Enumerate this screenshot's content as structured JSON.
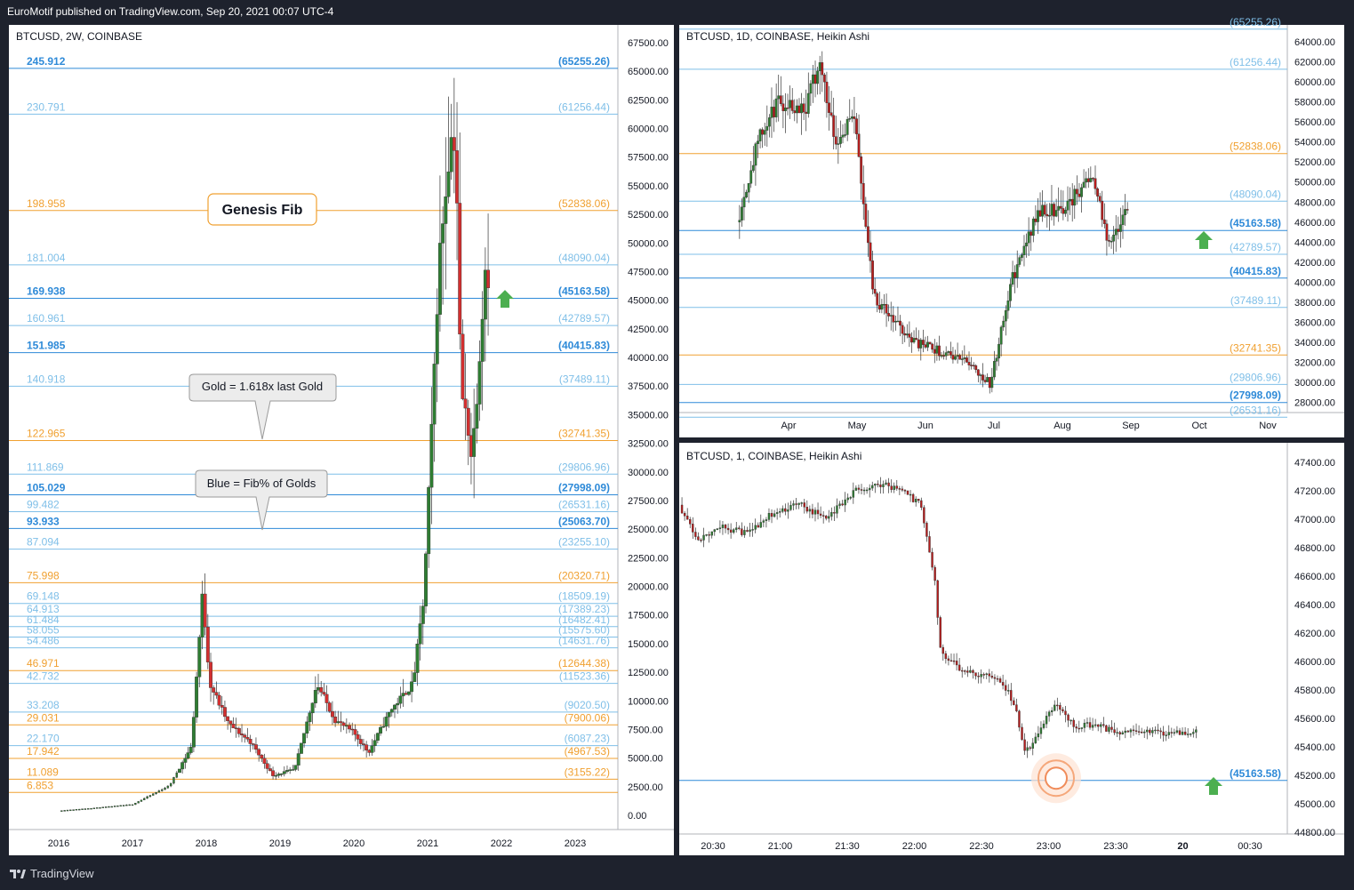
{
  "header": {
    "publisher_text": "EuroMotif published on TradingView.com, Sep 20, 2021 00:07 UTC-4"
  },
  "footer": {
    "brand": "TradingView"
  },
  "colors": {
    "bull": "#26a69a",
    "bear": "#d32f2f",
    "bull_ha": "#2e7d32",
    "bear_ha": "#b71c1c",
    "gold": "#f0a030",
    "blue": "#2e8ad8",
    "lightblue": "#7fbfe8",
    "arrow": "#4caf50"
  },
  "left_chart": {
    "symbol": "BTCUSD, 2W, COINBASE",
    "price_axis": [
      "67500.00",
      "65000.00",
      "62500.00",
      "60000.00",
      "57500.00",
      "55000.00",
      "52500.00",
      "50000.00",
      "47500.00",
      "45000.00",
      "42500.00",
      "40000.00",
      "37500.00",
      "35000.00",
      "32500.00",
      "30000.00",
      "27500.00",
      "25000.00",
      "22500.00",
      "20000.00",
      "17500.00",
      "15000.00",
      "12500.00",
      "10000.00",
      "7500.00",
      "5000.00",
      "2500.00",
      "0.00"
    ],
    "time_axis": [
      "2016",
      "2017",
      "2018",
      "2019",
      "2020",
      "2021",
      "2022",
      "2023"
    ],
    "fib_levels": [
      {
        "left": "245.912",
        "right": "(65255.26)",
        "price": 65255,
        "kind": "blue"
      },
      {
        "left": "230.791",
        "right": "(61256.44)",
        "price": 61256,
        "kind": "lightblue"
      },
      {
        "left": "198.958",
        "right": "(52838.06)",
        "price": 52838,
        "kind": "gold"
      },
      {
        "left": "181.004",
        "right": "(48090.04)",
        "price": 48090,
        "kind": "lightblue"
      },
      {
        "left": "169.938",
        "right": "(45163.58)",
        "price": 45164,
        "kind": "blue"
      },
      {
        "left": "160.961",
        "right": "(42789.57)",
        "price": 42790,
        "kind": "lightblue"
      },
      {
        "left": "151.985",
        "right": "(40415.83)",
        "price": 40416,
        "kind": "blue"
      },
      {
        "left": "140.918",
        "right": "(37489.11)",
        "price": 37489,
        "kind": "lightblue"
      },
      {
        "left": "122.965",
        "right": "(32741.35)",
        "price": 32741,
        "kind": "gold"
      },
      {
        "left": "111.869",
        "right": "(29806.96)",
        "price": 29807,
        "kind": "lightblue"
      },
      {
        "left": "105.029",
        "right": "(27998.09)",
        "price": 27998,
        "kind": "blue"
      },
      {
        "left": "99.482",
        "right": "(26531.16)",
        "price": 26531,
        "kind": "lightblue"
      },
      {
        "left": "93.933",
        "right": "(25063.70)",
        "price": 25064,
        "kind": "blue"
      },
      {
        "left": "87.094",
        "right": "(23255.10)",
        "price": 23255,
        "kind": "lightblue"
      },
      {
        "left": "75.998",
        "right": "(20320.71)",
        "price": 20321,
        "kind": "gold"
      },
      {
        "left": "69.148",
        "right": "(18509.19)",
        "price": 18509,
        "kind": "lightblue"
      },
      {
        "left": "64.913",
        "right": "(17389.23)",
        "price": 17389,
        "kind": "lightblue"
      },
      {
        "left": "61.484",
        "right": "(16482.41)",
        "price": 16482,
        "kind": "lightblue"
      },
      {
        "left": "58.055",
        "right": "(15575.60)",
        "price": 15576,
        "kind": "lightblue"
      },
      {
        "left": "54.486",
        "right": "(14631.76)",
        "price": 14632,
        "kind": "lightblue"
      },
      {
        "left": "46.971",
        "right": "(12644.38)",
        "price": 12644,
        "kind": "gold"
      },
      {
        "left": "42.732",
        "right": "(11523.36)",
        "price": 11523,
        "kind": "lightblue"
      },
      {
        "left": "33.208",
        "right": "(9020.50)",
        "price": 9020,
        "kind": "lightblue"
      },
      {
        "left": "29.031",
        "right": "(7900.06)",
        "price": 7900,
        "kind": "gold"
      },
      {
        "left": "22.170",
        "right": "(6087.23)",
        "price": 6087,
        "kind": "lightblue"
      },
      {
        "left": "17.942",
        "right": "(4967.53)",
        "price": 4968,
        "kind": "gold"
      },
      {
        "left": "11.089",
        "right": "(3155.22)",
        "price": 3155,
        "kind": "gold"
      },
      {
        "left": "6.853",
        "right": "",
        "price": 2000,
        "kind": "gold"
      }
    ],
    "annotations": {
      "title_box": "Genesis Fib",
      "callout1": "Gold = 1.618x last Gold",
      "callout2": "Blue = Fib% of Golds"
    }
  },
  "top_right_chart": {
    "symbol": "BTCUSD, 1D, COINBASE, Heikin Ashi",
    "price_axis": [
      "64000.00",
      "62000.00",
      "60000.00",
      "58000.00",
      "56000.00",
      "54000.00",
      "52000.00",
      "50000.00",
      "48000.00",
      "46000.00",
      "44000.00",
      "42000.00",
      "40000.00",
      "38000.00",
      "36000.00",
      "34000.00",
      "32000.00",
      "30000.00",
      "28000.00"
    ],
    "time_axis": [
      "Apr",
      "May",
      "Jun",
      "Jul",
      "Aug",
      "Sep",
      "Oct",
      "Nov"
    ],
    "fib_labels": [
      {
        "text": "(65255.26)",
        "price": 65255,
        "kind": "lightblue"
      },
      {
        "text": "(61256.44)",
        "price": 61256,
        "kind": "lightblue"
      },
      {
        "text": "(52838.06)",
        "price": 52838,
        "kind": "gold"
      },
      {
        "text": "(48090.04)",
        "price": 48090,
        "kind": "lightblue"
      },
      {
        "text": "(45163.58)",
        "price": 45164,
        "kind": "blue"
      },
      {
        "text": "(42789.57)",
        "price": 42790,
        "kind": "lightblue"
      },
      {
        "text": "(40415.83)",
        "price": 40416,
        "kind": "blue"
      },
      {
        "text": "(37489.11)",
        "price": 37489,
        "kind": "lightblue"
      },
      {
        "text": "(32741.35)",
        "price": 32741,
        "kind": "gold"
      },
      {
        "text": "(29806.96)",
        "price": 29807,
        "kind": "lightblue"
      },
      {
        "text": "(27998.09)",
        "price": 27998,
        "kind": "blue"
      },
      {
        "text": "(26531.16)",
        "price": 26531,
        "kind": "lightblue"
      }
    ]
  },
  "bottom_right_chart": {
    "symbol": "BTCUSD, 1, COINBASE, Heikin Ashi",
    "price_axis": [
      "47400.00",
      "47200.00",
      "47000.00",
      "46800.00",
      "46600.00",
      "46400.00",
      "46200.00",
      "46000.00",
      "45800.00",
      "45600.00",
      "45400.00",
      "45200.00",
      "45000.00",
      "44800.00"
    ],
    "time_axis": [
      "20:30",
      "21:00",
      "21:30",
      "22:00",
      "22:30",
      "23:00",
      "23:30",
      "20",
      "00:30"
    ],
    "fib_labels": [
      {
        "text": "(45163.58)",
        "price": 45164,
        "kind": "blue"
      }
    ]
  },
  "chart_data": [
    {
      "type": "candlestick",
      "title": "BTCUSD, 2W, COINBASE",
      "ylim": [
        0,
        69000
      ],
      "x": [
        "2016",
        "2017",
        "2018",
        "2019",
        "2020",
        "2021",
        "2022",
        "2023"
      ],
      "close_path": [
        [
          2016.0,
          400
        ],
        [
          2016.5,
          650
        ],
        [
          2017.0,
          950
        ],
        [
          2017.5,
          2600
        ],
        [
          2017.8,
          6000
        ],
        [
          2017.95,
          19400
        ],
        [
          2018.05,
          11500
        ],
        [
          2018.3,
          8000
        ],
        [
          2018.6,
          6400
        ],
        [
          2018.9,
          3500
        ],
        [
          2019.2,
          4000
        ],
        [
          2019.5,
          11500
        ],
        [
          2019.75,
          8300
        ],
        [
          2020.0,
          7200
        ],
        [
          2020.2,
          5500
        ],
        [
          2020.5,
          9200
        ],
        [
          2020.8,
          11500
        ],
        [
          2020.95,
          19000
        ],
        [
          2021.05,
          33000
        ],
        [
          2021.15,
          48000
        ],
        [
          2021.3,
          58900
        ],
        [
          2021.38,
          59500
        ],
        [
          2021.45,
          37000
        ],
        [
          2021.55,
          34000
        ],
        [
          2021.6,
          31000
        ],
        [
          2021.7,
          40000
        ],
        [
          2021.78,
          48000
        ],
        [
          2021.8,
          47300
        ]
      ]
    },
    {
      "type": "candlestick",
      "title": "BTCUSD, 1D, COINBASE, Heikin Ashi",
      "ylim": [
        27000,
        65000
      ],
      "x": [
        "Apr",
        "May",
        "Jun",
        "Jul",
        "Aug",
        "Sep",
        "Oct",
        "Nov"
      ],
      "close_path": [
        [
          0,
          46000
        ],
        [
          0.3,
          54000
        ],
        [
          0.6,
          58000
        ],
        [
          1.0,
          57500
        ],
        [
          1.2,
          62000
        ],
        [
          1.45,
          54000
        ],
        [
          1.7,
          57000
        ],
        [
          2.0,
          38500
        ],
        [
          2.3,
          36000
        ],
        [
          2.6,
          34000
        ],
        [
          3.0,
          33000
        ],
        [
          3.4,
          32000
        ],
        [
          3.7,
          29800
        ],
        [
          4.0,
          40000
        ],
        [
          4.4,
          47000
        ],
        [
          4.8,
          47500
        ],
        [
          5.2,
          51000
        ],
        [
          5.4,
          44000
        ],
        [
          5.7,
          47000
        ]
      ]
    },
    {
      "type": "candlestick",
      "title": "BTCUSD, 1, COINBASE, Heikin Ashi",
      "ylim": [
        44800,
        47400
      ],
      "x": [
        "20:30",
        "21:00",
        "21:30",
        "22:00",
        "22:30",
        "23:00",
        "23:30",
        "20",
        "00:30"
      ],
      "close_path": [
        [
          0,
          47100
        ],
        [
          0.3,
          46850
        ],
        [
          0.6,
          46950
        ],
        [
          1.0,
          46900
        ],
        [
          1.4,
          47050
        ],
        [
          1.8,
          47100
        ],
        [
          2.2,
          47000
        ],
        [
          2.6,
          47200
        ],
        [
          3.0,
          47250
        ],
        [
          3.3,
          47200
        ],
        [
          3.6,
          47100
        ],
        [
          3.8,
          46600
        ],
        [
          3.9,
          46050
        ],
        [
          4.2,
          45950
        ],
        [
          4.5,
          45900
        ],
        [
          4.75,
          45900
        ],
        [
          5.0,
          45700
        ],
        [
          5.15,
          45350
        ],
        [
          5.35,
          45500
        ],
        [
          5.6,
          45700
        ],
        [
          5.9,
          45550
        ],
        [
          6.2,
          45550
        ],
        [
          6.5,
          45500
        ],
        [
          6.9,
          45500
        ]
      ]
    }
  ]
}
